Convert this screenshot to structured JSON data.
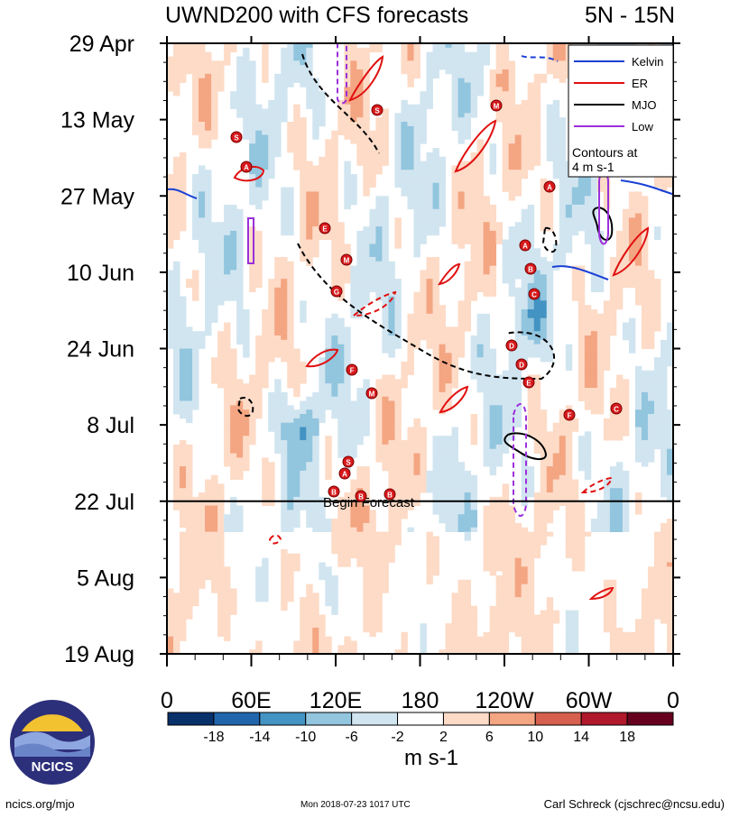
{
  "chart_data": {
    "type": "heatmap",
    "title": "UWND200 with CFS forecasts",
    "region": "5N - 15N",
    "xlabel": "",
    "ylabel": "",
    "x_tick_labels": [
      "0",
      "60E",
      "120E",
      "180",
      "120W",
      "60W",
      "0"
    ],
    "x_range_deg": [
      0,
      360
    ],
    "y_tick_labels": [
      "29 Apr",
      "13 May",
      "27 May",
      "10 Jun",
      "24 Jun",
      "8 Jul",
      "22 Jul",
      "5 Aug",
      "19 Aug"
    ],
    "y_range_days": [
      0,
      112
    ],
    "forecast_start_label": "Begin Forecast",
    "forecast_start_day": 84,
    "colorbar": {
      "unit_label": "m s-1",
      "tick_labels": [
        "-18",
        "-14",
        "-10",
        "-6",
        "-2",
        "2",
        "6",
        "10",
        "14",
        "18"
      ],
      "colors": [
        "#08306b",
        "#2166ac",
        "#4393c3",
        "#92c5de",
        "#d1e5f0",
        "#ffffff",
        "#fddbc7",
        "#f4a582",
        "#d6604d",
        "#b2182b",
        "#67001f"
      ]
    },
    "legend": {
      "position": "top-right",
      "entries": [
        {
          "name": "Kelvin",
          "color": "#1a3fd6"
        },
        {
          "name": "ER",
          "color": "#e01010"
        },
        {
          "name": "MJO",
          "color": "#000000"
        },
        {
          "name": "Low",
          "color": "#9b30d9"
        }
      ],
      "note": "Contours at\n4 m s-1"
    },
    "storm_markers": [
      "S",
      "A",
      "S",
      "M",
      "E",
      "M",
      "G",
      "F",
      "M",
      "S",
      "A",
      "B",
      "B",
      "D",
      "A",
      "B",
      "C",
      "D",
      "E",
      "F",
      "C",
      "B",
      "A"
    ]
  },
  "footer": {
    "url": "ncics.org/mjo",
    "timestamp": "Mon 2018-07-23 1017 UTC",
    "credit": "Carl Schreck (cjschrec@ncsu.edu)"
  },
  "logo_text": "NCICS"
}
